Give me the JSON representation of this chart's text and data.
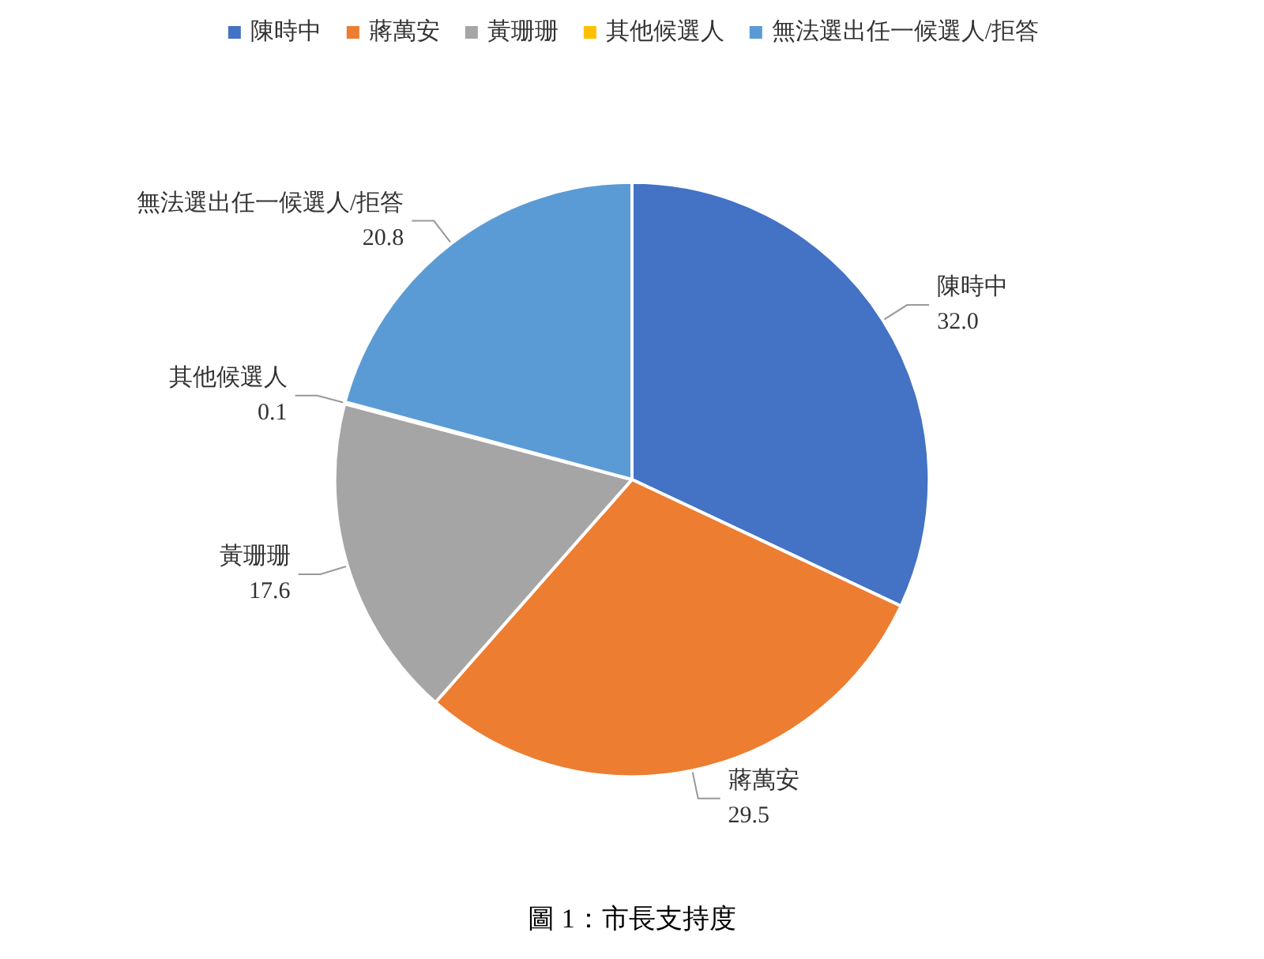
{
  "chart_data": {
    "type": "pie",
    "title": "圖 1：市長支持度",
    "categories": [
      "陳時中",
      "蔣萬安",
      "黃珊珊",
      "其他候選人",
      "無法選出任一候選人/拒答"
    ],
    "values": [
      32.0,
      29.5,
      17.6,
      0.1,
      20.8
    ],
    "value_labels": [
      "32.0",
      "29.5",
      "17.6",
      "0.1",
      "20.8"
    ],
    "colors": [
      "#4472c4",
      "#ed7d31",
      "#a5a5a5",
      "#ffc000",
      "#5b9bd5"
    ],
    "legend": "top"
  }
}
